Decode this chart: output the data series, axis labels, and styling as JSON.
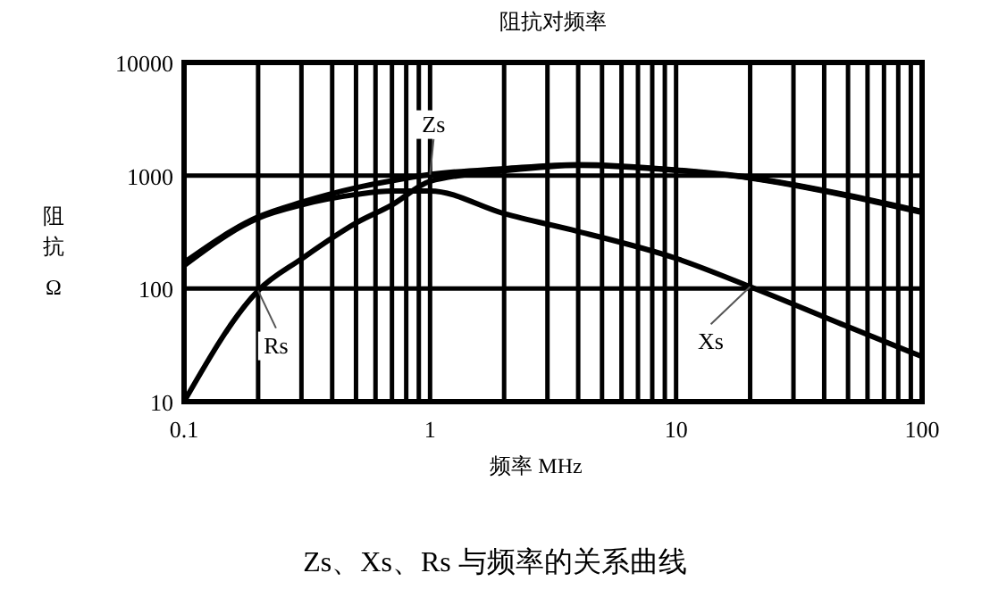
{
  "chart_data": {
    "type": "line",
    "title": "阻抗对频率",
    "xlabel": "频率 MHz",
    "ylabel": "阻抗 Ω",
    "log": "xy",
    "grid": true,
    "marker": "none",
    "line_style": "solid",
    "xlim": [
      0.1,
      100
    ],
    "ylim": [
      10,
      10000
    ],
    "xticks": [
      0.1,
      {
        "value": 0.2,
        "label": null
      },
      {
        "value": 0.3,
        "label": null
      },
      {
        "value": 0.4,
        "label": null
      },
      {
        "value": 0.5,
        "label": null
      },
      {
        "value": 0.6,
        "label": null
      },
      {
        "value": 0.7,
        "label": null
      },
      {
        "value": 0.8,
        "label": null
      },
      {
        "value": 0.9,
        "label": null
      },
      1,
      {
        "value": 2,
        "label": null
      },
      {
        "value": 3,
        "label": null
      },
      {
        "value": 4,
        "label": null
      },
      {
        "value": 5,
        "label": null
      },
      {
        "value": 6,
        "label": null
      },
      {
        "value": 7,
        "label": null
      },
      {
        "value": 8,
        "label": null
      },
      {
        "value": 9,
        "label": null
      },
      10,
      {
        "value": 20,
        "label": null
      },
      {
        "value": 30,
        "label": null
      },
      {
        "value": 40,
        "label": null
      },
      {
        "value": 50,
        "label": null
      },
      {
        "value": 60,
        "label": null
      },
      {
        "value": 70,
        "label": null
      },
      {
        "value": 80,
        "label": null
      },
      {
        "value": 90,
        "label": null
      },
      100
    ],
    "yticks": [
      10,
      100,
      1000,
      10000
    ],
    "x": [
      0.1,
      0.2,
      0.3,
      0.5,
      0.7,
      1,
      2,
      4,
      10,
      20,
      50,
      100
    ],
    "series": [
      {
        "name": "Zs",
        "color": "#000000",
        "values": [
          170,
          430,
          580,
          780,
          900,
          1020,
          1150,
          1250,
          1120,
          960,
          670,
          480
        ]
      },
      {
        "name": "Xs",
        "color": "#000000",
        "values": [
          160,
          420,
          550,
          680,
          730,
          730,
          460,
          320,
          185,
          104,
          46,
          25
        ]
      },
      {
        "name": "Rs",
        "color": "#000000",
        "values": [
          10,
          96,
          183,
          380,
          550,
          890,
          1100,
          1230,
          1110,
          950,
          660,
          470
        ]
      }
    ],
    "annotations": [
      "Zs、Xs、Rs 与频率的关系曲线"
    ]
  }
}
